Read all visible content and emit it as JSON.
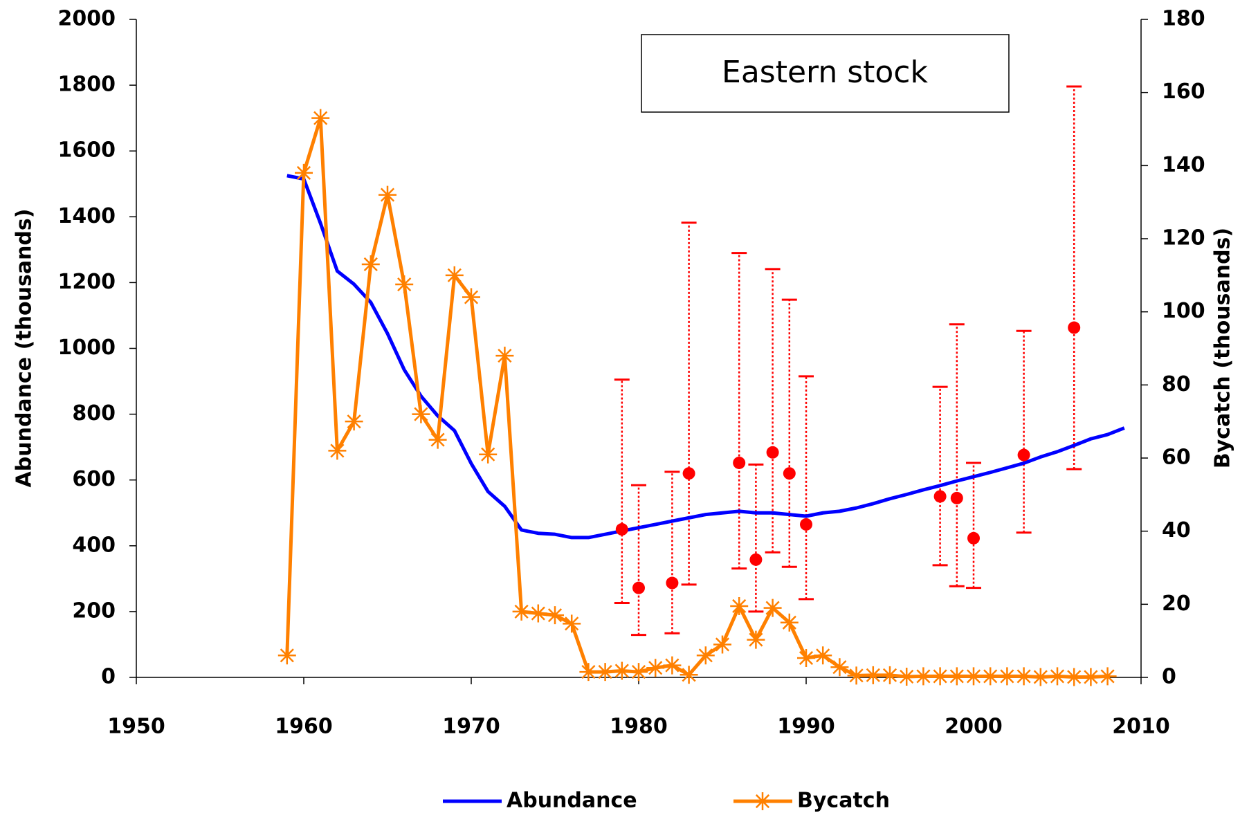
{
  "chart_data": {
    "type": "line",
    "annotation": "Eastern stock",
    "ylabel": "Abundance (thousands)",
    "y2label": "Bycatch (thousands)",
    "xlim": [
      1950,
      2010
    ],
    "xticks": [
      1950,
      1960,
      1970,
      1980,
      1990,
      2000,
      2010
    ],
    "ylim": [
      0,
      2000
    ],
    "yticks": [
      0,
      200,
      400,
      600,
      800,
      1000,
      1200,
      1400,
      1600,
      1800,
      2000
    ],
    "y2lim": [
      0,
      180
    ],
    "y2ticks": [
      0,
      20,
      40,
      60,
      80,
      100,
      120,
      140,
      160,
      180
    ],
    "legend": "bottom",
    "series": [
      {
        "name": "Abundance",
        "color": "#0000ff",
        "x": [
          1959,
          1960,
          1961,
          1962,
          1963,
          1964,
          1965,
          1966,
          1967,
          1968,
          1969,
          1970,
          1971,
          1972,
          1973,
          1974,
          1975,
          1976,
          1977,
          1978,
          1979,
          1980,
          1981,
          1982,
          1983,
          1984,
          1985,
          1986,
          1987,
          1988,
          1989,
          1990,
          1991,
          1992,
          1993,
          1994,
          1995,
          1996,
          1997,
          1998,
          1999,
          2000,
          2001,
          2002,
          2003,
          2004,
          2005,
          2006,
          2007,
          2008,
          2009
        ],
        "values": [
          1525,
          1515,
          1380,
          1235,
          1195,
          1140,
          1045,
          935,
          855,
          795,
          750,
          650,
          565,
          520,
          448,
          438,
          435,
          425,
          425,
          435,
          445,
          455,
          465,
          475,
          485,
          495,
          500,
          505,
          500,
          500,
          495,
          490,
          500,
          505,
          515,
          528,
          543,
          556,
          570,
          583,
          597,
          610,
          623,
          637,
          651,
          670,
          686,
          705,
          725,
          738,
          758
        ]
      },
      {
        "name": "Bycatch",
        "color": "#ff8000",
        "axis": "y2",
        "x": [
          1959,
          1960,
          1961,
          1962,
          1963,
          1964,
          1965,
          1966,
          1967,
          1968,
          1969,
          1970,
          1971,
          1972,
          1973,
          1974,
          1975,
          1976,
          1977,
          1978,
          1979,
          1980,
          1981,
          1982,
          1983,
          1984,
          1985,
          1986,
          1987,
          1988,
          1989,
          1990,
          1991,
          1992,
          1993,
          1994,
          1995,
          1996,
          1997,
          1998,
          1999,
          2000,
          2001,
          2002,
          2003,
          2004,
          2005,
          2006,
          2007,
          2008
        ],
        "values": [
          6,
          138,
          153,
          62,
          70,
          113,
          132,
          107.5,
          72,
          65,
          110,
          104,
          61,
          88,
          18,
          17.5,
          17,
          14.7,
          1.5,
          1.5,
          1.8,
          1.5,
          2.6,
          3.3,
          0.7,
          6,
          9,
          19.5,
          10.3,
          19,
          15,
          5.3,
          6,
          2.8,
          0.5,
          0.6,
          0.6,
          0.2,
          0.3,
          0.3,
          0.3,
          0.3,
          0.3,
          0.3,
          0.3,
          0.1,
          0.3,
          0.1,
          0.1,
          0.3
        ]
      }
    ],
    "estimates": {
      "color": "#ff0000",
      "x": [
        1979,
        1980,
        1982,
        1983,
        1986,
        1987,
        1988,
        1989,
        1990,
        1998,
        1999,
        2000,
        2003,
        2006
      ],
      "values": [
        450,
        272,
        287,
        620,
        652,
        358,
        684,
        620,
        465,
        550,
        545,
        423,
        676,
        1063
      ],
      "lower": [
        226,
        129,
        134,
        282,
        331,
        200,
        380,
        336,
        238,
        341,
        277,
        272,
        440,
        633
      ],
      "upper": [
        905,
        584,
        625,
        1382,
        1290,
        647,
        1241,
        1148,
        915,
        883,
        1073,
        652,
        1053,
        1796
      ]
    }
  }
}
